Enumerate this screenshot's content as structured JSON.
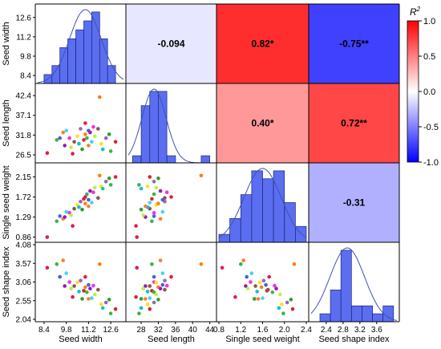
{
  "variables": [
    "Seed width",
    "Seed length",
    "Single seed weight",
    "Seed shape index"
  ],
  "colorbar": {
    "title_main": "R",
    "title_sup": "2",
    "ticks": [
      "1.0",
      "0.5",
      "0.0",
      "-0.5",
      "-1.0"
    ],
    "colors": {
      "high": "#ff0000",
      "mid": "#ffffff",
      "low": "#0000ff"
    }
  },
  "chart_data": {
    "type": "pairs-matrix",
    "variables": [
      "Seed width",
      "Seed length",
      "Single seed weight",
      "Seed shape index"
    ],
    "axes": [
      {
        "name": "Seed width",
        "x_ticks": [
          "8.4",
          "9.8",
          "11.2",
          "12.6"
        ],
        "y_ticks": [
          "8.4",
          "9.8",
          "11.2",
          "12.6"
        ],
        "range": [
          8.0,
          13.4
        ]
      },
      {
        "name": "Seed length",
        "x_ticks": [
          "28",
          "32",
          "36",
          "40",
          "44"
        ],
        "y_ticks": [
          "26.5",
          "31.8",
          "37.1",
          "42.4"
        ],
        "range": [
          25.0,
          45.0
        ]
      },
      {
        "name": "Single seed weight",
        "x_ticks": [
          "0.8",
          "1.2",
          "1.6",
          "2.0",
          "2.4"
        ],
        "y_ticks": [
          "0.86",
          "1.29",
          "1.72",
          "2.15"
        ],
        "range": [
          0.8,
          2.4
        ]
      },
      {
        "name": "Seed shape index",
        "x_ticks": [
          "2.4",
          "2.8",
          "3.2",
          "3.6"
        ],
        "y_ticks": [
          "2.04",
          "2.55",
          "3.06",
          "3.57",
          "4.08"
        ],
        "range": [
          2.04,
          4.08
        ]
      }
    ],
    "correlations": [
      {
        "row": 0,
        "col": 1,
        "r": -0.094,
        "label": "-0.094"
      },
      {
        "row": 0,
        "col": 2,
        "r": 0.82,
        "label": "0.82*"
      },
      {
        "row": 0,
        "col": 3,
        "r": -0.75,
        "label": "-0.75**"
      },
      {
        "row": 1,
        "col": 2,
        "r": 0.4,
        "label": "0.40*"
      },
      {
        "row": 1,
        "col": 3,
        "r": 0.72,
        "label": "0.72**"
      },
      {
        "row": 2,
        "col": 3,
        "r": -0.31,
        "label": "-0.31"
      }
    ],
    "histograms": [
      {
        "variable": "Seed width",
        "bin_edges": [
          8.4,
          8.9,
          9.4,
          9.9,
          10.4,
          10.9,
          11.4,
          11.9,
          12.4,
          12.9
        ],
        "counts": [
          1,
          2,
          4,
          5,
          6,
          7,
          8,
          5,
          2
        ],
        "density_peak": 11.0
      },
      {
        "variable": "Seed length",
        "bin_edges": [
          26,
          28,
          30,
          32,
          34,
          36,
          38,
          40,
          42,
          44
        ],
        "counts": [
          1,
          8,
          10,
          10,
          1,
          0,
          0,
          0,
          1
        ],
        "density_peak": 31.0
      },
      {
        "variable": "Single seed weight",
        "bin_edges": [
          0.8,
          1.0,
          1.2,
          1.4,
          1.6,
          1.8,
          2.0,
          2.2,
          2.4
        ],
        "counts": [
          1,
          3,
          6,
          9,
          8,
          9,
          5,
          2
        ],
        "density_peak": 1.6
      },
      {
        "variable": "Seed shape index",
        "bin_edges": [
          2.25,
          2.5,
          2.75,
          3.0,
          3.25,
          3.5,
          3.75,
          4.0
        ],
        "counts": [
          1,
          4,
          9,
          2,
          2,
          1,
          2
        ],
        "density_peak": 2.9
      }
    ],
    "scatter": {
      "colors": [
        "#e6194b",
        "#3cb44b",
        "#4363d8",
        "#f58231",
        "#911eb4",
        "#42d4f4",
        "#f032e6",
        "#bfef45",
        "#8c564b",
        "#ffe119",
        "#17becf",
        "#9467bd",
        "#2ca02c",
        "#d62728",
        "#ff7f0e"
      ],
      "points": [
        {
          "seed_width": 8.6,
          "seed_length": 27.0,
          "single_seed_weight": 0.86,
          "seed_shape_index": 3.45
        },
        {
          "seed_width": 9.2,
          "seed_length": 30.5,
          "single_seed_weight": 1.2,
          "seed_shape_index": 3.55
        },
        {
          "seed_width": 9.4,
          "seed_length": 31.0,
          "single_seed_weight": 1.31,
          "seed_shape_index": 3.2
        },
        {
          "seed_width": 9.6,
          "seed_length": 32.5,
          "single_seed_weight": 1.25,
          "seed_shape_index": 3.65
        },
        {
          "seed_width": 9.7,
          "seed_length": 29.0,
          "single_seed_weight": 1.29,
          "seed_shape_index": 2.95
        },
        {
          "seed_width": 9.8,
          "seed_length": 33.0,
          "single_seed_weight": 1.4,
          "seed_shape_index": 3.3
        },
        {
          "seed_width": 10.0,
          "seed_length": 31.0,
          "single_seed_weight": 1.38,
          "seed_shape_index": 3.06
        },
        {
          "seed_width": 10.1,
          "seed_length": 28.5,
          "single_seed_weight": 1.33,
          "seed_shape_index": 2.88
        },
        {
          "seed_width": 10.3,
          "seed_length": 30.0,
          "single_seed_weight": 1.47,
          "seed_shape_index": 2.95
        },
        {
          "seed_width": 10.5,
          "seed_length": 31.5,
          "single_seed_weight": 1.55,
          "seed_shape_index": 3.05
        },
        {
          "seed_width": 10.6,
          "seed_length": 29.5,
          "single_seed_weight": 1.5,
          "seed_shape_index": 2.8
        },
        {
          "seed_width": 10.7,
          "seed_length": 33.5,
          "single_seed_weight": 1.62,
          "seed_shape_index": 3.1
        },
        {
          "seed_width": 10.8,
          "seed_length": 28.0,
          "single_seed_weight": 1.45,
          "seed_shape_index": 2.6
        },
        {
          "seed_width": 10.9,
          "seed_length": 30.5,
          "single_seed_weight": 1.68,
          "seed_shape_index": 2.82
        },
        {
          "seed_width": 11.0,
          "seed_length": 32.0,
          "single_seed_weight": 1.58,
          "seed_shape_index": 2.92
        },
        {
          "seed_width": 11.0,
          "seed_length": 35.0,
          "single_seed_weight": 1.72,
          "seed_shape_index": 3.2
        },
        {
          "seed_width": 11.1,
          "seed_length": 31.0,
          "single_seed_weight": 1.78,
          "seed_shape_index": 2.78
        },
        {
          "seed_width": 11.2,
          "seed_length": 33.0,
          "single_seed_weight": 1.66,
          "seed_shape_index": 2.98
        },
        {
          "seed_width": 11.2,
          "seed_length": 29.0,
          "single_seed_weight": 1.52,
          "seed_shape_index": 2.6
        },
        {
          "seed_width": 11.3,
          "seed_length": 32.5,
          "single_seed_weight": 1.85,
          "seed_shape_index": 2.88
        },
        {
          "seed_width": 11.4,
          "seed_length": 30.0,
          "single_seed_weight": 1.6,
          "seed_shape_index": 2.62
        },
        {
          "seed_width": 11.5,
          "seed_length": 34.0,
          "single_seed_weight": 1.82,
          "seed_shape_index": 2.96
        },
        {
          "seed_width": 11.6,
          "seed_length": 31.5,
          "single_seed_weight": 1.92,
          "seed_shape_index": 2.72
        },
        {
          "seed_width": 11.8,
          "seed_length": 33.5,
          "single_seed_weight": 1.7,
          "seed_shape_index": 2.85
        },
        {
          "seed_width": 12.0,
          "seed_length": 29.5,
          "single_seed_weight": 1.95,
          "seed_shape_index": 2.45
        },
        {
          "seed_width": 12.1,
          "seed_length": 28.0,
          "single_seed_weight": 1.9,
          "seed_shape_index": 2.35
        },
        {
          "seed_width": 12.3,
          "seed_length": 31.0,
          "single_seed_weight": 2.05,
          "seed_shape_index": 2.5
        },
        {
          "seed_width": 12.5,
          "seed_length": 32.0,
          "single_seed_weight": 2.12,
          "seed_shape_index": 2.58
        },
        {
          "seed_width": 12.9,
          "seed_length": 30.0,
          "single_seed_weight": 2.15,
          "seed_shape_index": 2.32
        },
        {
          "seed_width": 11.9,
          "seed_length": 42.0,
          "single_seed_weight": 2.18,
          "seed_shape_index": 3.55
        },
        {
          "seed_width": 10.2,
          "seed_length": 26.8,
          "single_seed_weight": 1.1,
          "seed_shape_index": 2.65
        },
        {
          "seed_width": 12.6,
          "seed_length": 27.5,
          "single_seed_weight": 1.98,
          "seed_shape_index": 2.2
        }
      ]
    }
  }
}
